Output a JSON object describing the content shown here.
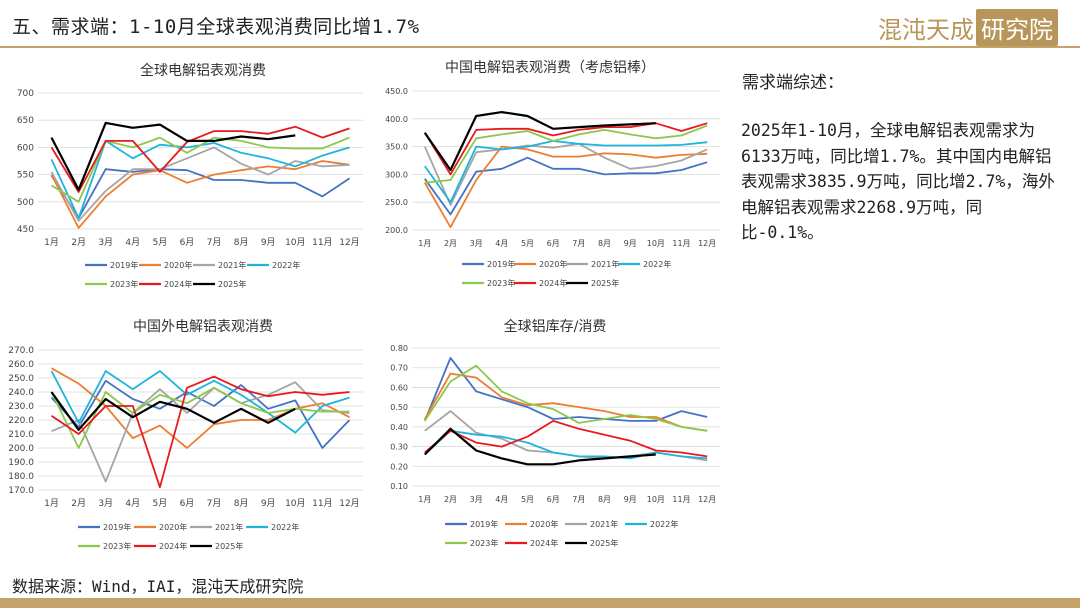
{
  "header": {
    "title": "五、需求端：1-10月全球表观消费同比增1.7%",
    "logo_text": "混沌天成",
    "logo_box_text": "研究院"
  },
  "summary": {
    "heading": "需求端综述：",
    "body": "2025年1-10月，全球电解铝表观需求为6133万吨，同比增1.7%。其中国内电解铝表观需求3835.9万吨，同比增2.7%，海外电解铝表观需求2268.9万吨，同比-0.1%。"
  },
  "footer": {
    "source": "数据来源：Wind，IAI，混沌天成研究院"
  },
  "series_colors": {
    "2019年": "#4472c4",
    "2020年": "#ed7d31",
    "2021年": "#a5a5a5",
    "2022年": "#1eb4dc",
    "2023年": "#8cc84b",
    "2024年": "#e8191e",
    "2025年": "#000000"
  },
  "chart_data": [
    {
      "type": "line",
      "title": "全球电解铝表观消费",
      "x": [
        "1月",
        "2月",
        "3月",
        "4月",
        "5月",
        "6月",
        "7月",
        "8月",
        "9月",
        "10月",
        "11月",
        "12月"
      ],
      "ylim": [
        450,
        700
      ],
      "yticks": [
        "450",
        "500",
        "550",
        "600",
        "650",
        "700"
      ],
      "legend": "bottom",
      "series": [
        {
          "name": "2019年",
          "values": [
            548,
            470,
            560,
            555,
            560,
            558,
            540,
            540,
            535,
            535,
            510,
            543
          ]
        },
        {
          "name": "2020年",
          "values": [
            550,
            452,
            510,
            550,
            558,
            535,
            550,
            558,
            565,
            560,
            575,
            568
          ]
        },
        {
          "name": "2021年",
          "values": [
            555,
            465,
            520,
            560,
            560,
            580,
            600,
            570,
            550,
            575,
            565,
            568
          ]
        },
        {
          "name": "2022年",
          "values": [
            578,
            470,
            612,
            580,
            605,
            600,
            608,
            590,
            580,
            565,
            585,
            600
          ]
        },
        {
          "name": "2023年",
          "values": [
            530,
            500,
            612,
            600,
            618,
            590,
            618,
            612,
            600,
            598,
            598,
            618
          ]
        },
        {
          "name": "2024年",
          "values": [
            600,
            518,
            612,
            612,
            555,
            610,
            630,
            630,
            625,
            638,
            618,
            635
          ]
        },
        {
          "name": "2025年",
          "values": [
            618,
            522,
            645,
            636,
            642,
            612,
            612,
            620,
            615,
            622,
            null,
            null
          ]
        }
      ]
    },
    {
      "type": "line",
      "title": "中国电解铝表观消费（考虑铝棒）",
      "x": [
        "1月",
        "2月",
        "3月",
        "4月",
        "5月",
        "6月",
        "7月",
        "8月",
        "9月",
        "10月",
        "11月",
        "12月"
      ],
      "ylim": [
        200,
        450
      ],
      "yticks": [
        "200.0",
        "250.0",
        "300.0",
        "350.0",
        "400.0",
        "450.0"
      ],
      "legend": "bottom",
      "series": [
        {
          "name": "2019年",
          "values": [
            292,
            228,
            305,
            310,
            330,
            310,
            310,
            300,
            302,
            302,
            308,
            322
          ]
        },
        {
          "name": "2020年",
          "values": [
            285,
            205,
            290,
            350,
            345,
            332,
            332,
            338,
            336,
            330,
            335,
            337
          ]
        },
        {
          "name": "2021年",
          "values": [
            350,
            245,
            340,
            345,
            352,
            348,
            355,
            330,
            310,
            315,
            325,
            345
          ]
        },
        {
          "name": "2022年",
          "values": [
            315,
            250,
            350,
            345,
            350,
            360,
            355,
            352,
            352,
            352,
            353,
            358
          ]
        },
        {
          "name": "2023年",
          "values": [
            285,
            290,
            365,
            372,
            378,
            360,
            372,
            380,
            372,
            365,
            370,
            388
          ]
        },
        {
          "name": "2024年",
          "values": [
            375,
            300,
            380,
            382,
            382,
            370,
            380,
            385,
            385,
            392,
            378,
            392
          ]
        },
        {
          "name": "2025年",
          "values": [
            375,
            308,
            405,
            412,
            405,
            382,
            385,
            388,
            390,
            392,
            null,
            null
          ]
        }
      ]
    },
    {
      "type": "line",
      "title": "中国外电解铝表观消费",
      "x": [
        "1月",
        "2月",
        "3月",
        "4月",
        "5月",
        "6月",
        "7月",
        "8月",
        "9月",
        "10月",
        "11月",
        "12月"
      ],
      "ylim": [
        170,
        270
      ],
      "yticks": [
        "170.0",
        "180.0",
        "190.0",
        "200.0",
        "210.0",
        "220.0",
        "230.0",
        "240.0",
        "250.0",
        "260.0",
        "270.0"
      ],
      "legend": "bottom",
      "series": [
        {
          "name": "2019年",
          "values": [
            236,
            215,
            248,
            235,
            228,
            240,
            230,
            245,
            228,
            234,
            200,
            220
          ]
        },
        {
          "name": "2020年",
          "values": [
            257,
            246,
            230,
            207,
            216,
            200,
            217,
            220,
            220,
            228,
            232,
            222
          ]
        },
        {
          "name": "2021年",
          "values": [
            212,
            220,
            176,
            225,
            242,
            225,
            243,
            232,
            238,
            247,
            227,
            225
          ]
        },
        {
          "name": "2022年",
          "values": [
            255,
            218,
            255,
            242,
            255,
            238,
            248,
            238,
            225,
            211,
            230,
            236
          ]
        },
        {
          "name": "2023年",
          "values": [
            240,
            200,
            240,
            225,
            238,
            232,
            243,
            232,
            225,
            228,
            226,
            226
          ]
        },
        {
          "name": "2024年",
          "values": [
            223,
            210,
            230,
            230,
            172,
            243,
            251,
            242,
            237,
            240,
            238,
            240
          ]
        },
        {
          "name": "2025年",
          "values": [
            240,
            213,
            235,
            222,
            233,
            228,
            218,
            228,
            218,
            228,
            null,
            null
          ]
        }
      ]
    },
    {
      "type": "line",
      "title": "全球铝库存/消费",
      "x": [
        "1月",
        "2月",
        "3月",
        "4月",
        "5月",
        "6月",
        "7月",
        "8月",
        "9月",
        "10月",
        "11月",
        "12月"
      ],
      "ylim": [
        0.1,
        0.8
      ],
      "yticks": [
        "0.10",
        "0.20",
        "0.30",
        "0.40",
        "0.50",
        "0.60",
        "0.70",
        "0.80"
      ],
      "legend": "bottom",
      "series": [
        {
          "name": "2019年",
          "values": [
            0.43,
            0.75,
            0.58,
            0.54,
            0.5,
            0.44,
            0.45,
            0.44,
            0.43,
            0.43,
            0.48,
            0.45
          ]
        },
        {
          "name": "2020年",
          "values": [
            0.44,
            0.67,
            0.65,
            0.55,
            0.51,
            0.52,
            0.5,
            0.48,
            0.45,
            0.45,
            0.4,
            0.38
          ]
        },
        {
          "name": "2021年",
          "values": [
            0.38,
            0.48,
            0.37,
            0.34,
            0.28,
            0.27,
            0.25,
            0.24,
            0.25,
            0.27,
            0.25,
            0.23
          ]
        },
        {
          "name": "2022年",
          "values": [
            0.26,
            0.38,
            0.36,
            0.35,
            0.32,
            0.27,
            0.25,
            0.25,
            0.24,
            0.27,
            0.25,
            0.24
          ]
        },
        {
          "name": "2023年",
          "values": [
            0.43,
            0.63,
            0.71,
            0.58,
            0.52,
            0.49,
            0.42,
            0.44,
            0.46,
            0.44,
            0.4,
            0.38
          ]
        },
        {
          "name": "2024年",
          "values": [
            0.27,
            0.38,
            0.32,
            0.3,
            0.35,
            0.43,
            0.39,
            0.36,
            0.33,
            0.28,
            0.27,
            0.25
          ]
        },
        {
          "name": "2025年",
          "values": [
            0.26,
            0.39,
            0.28,
            0.24,
            0.21,
            0.21,
            0.23,
            0.24,
            0.25,
            0.26,
            null,
            null
          ]
        }
      ]
    }
  ]
}
